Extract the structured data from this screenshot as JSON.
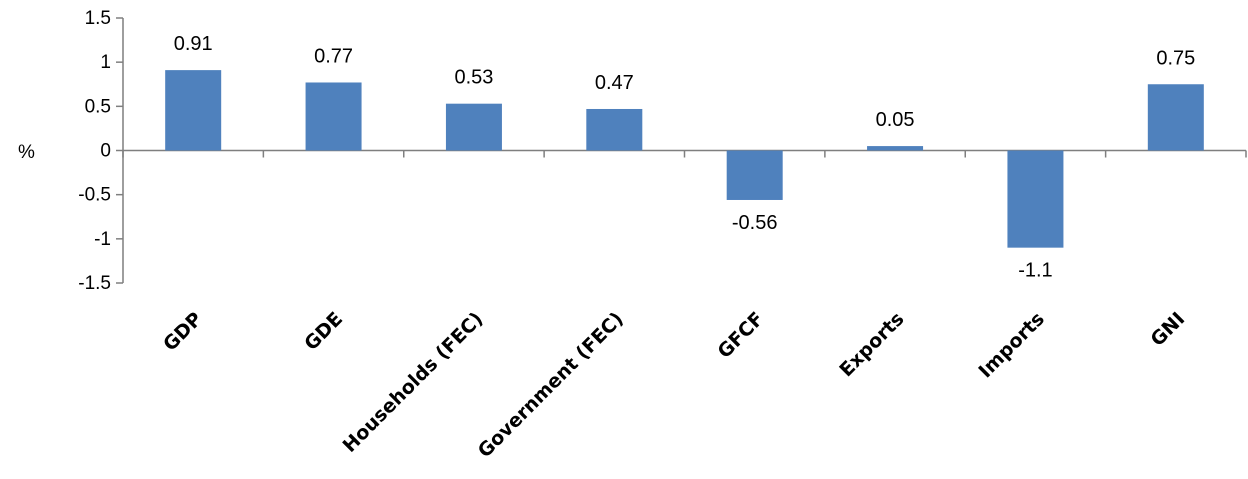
{
  "chart_data": {
    "type": "bar",
    "title": "",
    "xlabel": "",
    "ylabel": "%",
    "ylim": [
      -1.5,
      1.5
    ],
    "yticks": [
      1.5,
      1,
      0.5,
      0,
      -0.5,
      -1,
      -1.5
    ],
    "ytick_labels": [
      "1.5",
      "1",
      "0.5",
      "0",
      "-0.5",
      "-1",
      "-1.5"
    ],
    "categories": [
      "GDP",
      "GDE",
      "Households (FEC)",
      "Government (FEC)",
      "GFCF",
      "Exports",
      "Imports",
      "GNI"
    ],
    "values": [
      0.91,
      0.77,
      0.53,
      0.47,
      -0.56,
      0.05,
      -1.1,
      0.75
    ],
    "data_labels": [
      "0.91",
      "0.77",
      "0.53",
      "0.47",
      "-0.56",
      "0.05",
      "-1.1",
      "0.75"
    ],
    "grid": false,
    "legend": "none",
    "colors": {
      "bar": "#4f81bd",
      "axis": "#7f7f7f"
    }
  }
}
